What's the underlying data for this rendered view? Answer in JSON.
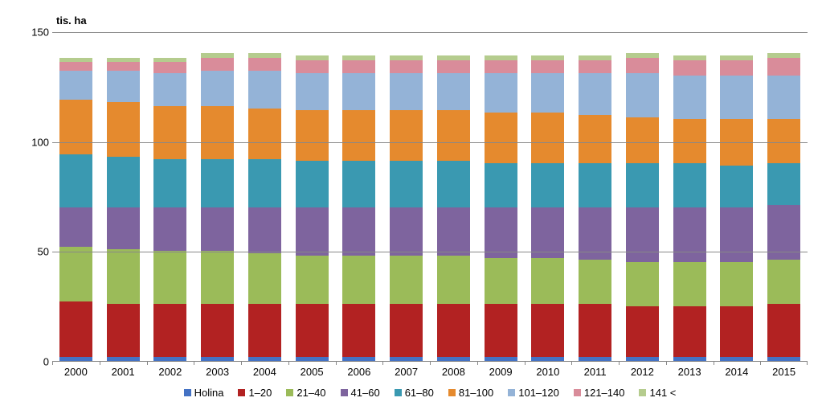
{
  "chart": {
    "type": "stacked-bar",
    "y_title": "tis. ha",
    "ylim": [
      0,
      150
    ],
    "ytick_step": 50,
    "yticks": [
      0,
      50,
      100,
      150
    ],
    "background_color": "#ffffff",
    "grid_color": "#888888",
    "label_fontsize": 13,
    "bar_width_ratio": 0.7,
    "years": [
      "2000",
      "2001",
      "2002",
      "2003",
      "2004",
      "2005",
      "2006",
      "2007",
      "2008",
      "2009",
      "2010",
      "2011",
      "2012",
      "2013",
      "2014",
      "2015"
    ],
    "series": [
      {
        "name": "Holina",
        "color": "#4472c4"
      },
      {
        "name": "1–20",
        "color": "#b22222"
      },
      {
        "name": "21–40",
        "color": "#9bbb59"
      },
      {
        "name": "41–60",
        "color": "#7e649e"
      },
      {
        "name": "61–80",
        "color": "#3a99b1"
      },
      {
        "name": "81–100",
        "color": "#e58a2e"
      },
      {
        "name": "101–120",
        "color": "#94b3d7"
      },
      {
        "name": "121–140",
        "color": "#d98c9a"
      },
      {
        "name": "141 <",
        "color": "#b5cc8e"
      }
    ],
    "data": {
      "2000": [
        2,
        25,
        25,
        18,
        24,
        25,
        13,
        4,
        2
      ],
      "2001": [
        2,
        24,
        25,
        19,
        23,
        25,
        14,
        4,
        2
      ],
      "2002": [
        2,
        24,
        24,
        20,
        22,
        24,
        15,
        5,
        2
      ],
      "2003": [
        2,
        24,
        24,
        20,
        22,
        24,
        16,
        6,
        2
      ],
      "2004": [
        2,
        24,
        23,
        21,
        22,
        23,
        17,
        6,
        2
      ],
      "2005": [
        2,
        24,
        22,
        22,
        21,
        23,
        17,
        6,
        2
      ],
      "2006": [
        2,
        24,
        22,
        22,
        21,
        23,
        17,
        6,
        2
      ],
      "2007": [
        2,
        24,
        22,
        22,
        21,
        23,
        17,
        6,
        2
      ],
      "2008": [
        2,
        24,
        22,
        22,
        21,
        23,
        17,
        6,
        2
      ],
      "2009": [
        2,
        24,
        21,
        23,
        20,
        23,
        18,
        6,
        2
      ],
      "2010": [
        2,
        24,
        21,
        23,
        20,
        23,
        18,
        6,
        2
      ],
      "2011": [
        2,
        24,
        20,
        24,
        20,
        22,
        19,
        6,
        2
      ],
      "2012": [
        2,
        23,
        20,
        25,
        20,
        21,
        20,
        7,
        2
      ],
      "2013": [
        2,
        23,
        20,
        25,
        20,
        20,
        20,
        7,
        2
      ],
      "2014": [
        2,
        23,
        20,
        25,
        19,
        21,
        20,
        7,
        2
      ],
      "2015": [
        2,
        24,
        20,
        25,
        19,
        20,
        20,
        8,
        2
      ]
    }
  }
}
